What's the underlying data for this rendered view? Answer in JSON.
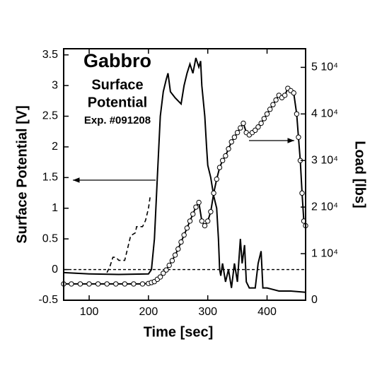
{
  "chart_data": {
    "type": "line",
    "annotations": [
      "Gabbro",
      "Surface",
      "Potential",
      "Exp. #091208"
    ],
    "xlabel": "Time [sec]",
    "ylabel": "Surface Potential [V]",
    "y2label": "Load [lbs]",
    "xlim": [
      57,
      465
    ],
    "xticks": [
      100,
      200,
      300,
      400
    ],
    "ylim": [
      -0.5,
      3.6
    ],
    "yticks": [
      -0.5,
      0,
      0.5,
      1,
      1.5,
      2,
      2.5,
      3,
      3.5
    ],
    "y2lim": [
      0,
      54000
    ],
    "y2ticks": [
      0,
      {
        "value": 10000,
        "label": "1 10⁴"
      },
      {
        "value": 20000,
        "label": "2 10⁴"
      },
      {
        "value": 30000,
        "label": "3 10⁴"
      },
      {
        "value": 40000,
        "label": "4 10⁴"
      },
      {
        "value": 50000,
        "label": "5 10⁴"
      }
    ],
    "reference_line": 0,
    "series": [
      {
        "color": "#000000",
        "dash": false,
        "x": [
          57,
          100,
          150,
          200,
          205,
          210,
          215,
          220,
          225,
          230,
          233,
          237,
          245,
          255,
          260,
          265,
          270,
          275,
          280,
          285,
          288,
          290,
          295,
          298,
          300,
          305,
          310,
          315,
          318,
          320,
          322,
          325,
          330,
          335,
          340,
          345,
          350,
          355,
          358,
          362,
          365,
          370,
          380,
          385,
          390,
          393,
          400,
          420,
          440,
          465
        ],
        "values": [
          -0.05,
          -0.07,
          -0.08,
          -0.07,
          0,
          0.5,
          1.5,
          2.5,
          2.9,
          3.1,
          3.2,
          2.9,
          2.8,
          2.7,
          3.0,
          3.2,
          3.35,
          3.2,
          3.45,
          3.3,
          3.4,
          3.0,
          2.5,
          2.0,
          1.7,
          1.5,
          1.2,
          1.0,
          0.5,
          0.0,
          -0.1,
          0.1,
          -0.2,
          0.0,
          -0.3,
          0.1,
          -0.2,
          0.5,
          0.1,
          0.4,
          -0.2,
          -0.3,
          -0.3,
          0.1,
          0.3,
          -0.3,
          -0.3,
          -0.35,
          -0.35,
          -0.37
        ]
      },
      {
        "color": "#000000",
        "dash": true,
        "x": [
          130,
          135,
          140,
          145,
          150,
          160,
          165,
          170,
          178,
          180,
          190,
          195,
          200,
          203
        ],
        "values": [
          -0.05,
          0.05,
          0.2,
          0.2,
          0.15,
          0.15,
          0.35,
          0.55,
          0.6,
          0.7,
          0.7,
          0.8,
          1.0,
          1.2
        ]
      },
      {
        "color": "#000000",
        "axis": "y2",
        "marker": "circle",
        "x": [
          57,
          70,
          85,
          100,
          115,
          130,
          145,
          160,
          175,
          190,
          200,
          205,
          210,
          215,
          220,
          225,
          230,
          235,
          240,
          245,
          250,
          255,
          260,
          265,
          270,
          275,
          280,
          285,
          290,
          295,
          300,
          305,
          310,
          315,
          320,
          325,
          330,
          335,
          340,
          345,
          350,
          355,
          360,
          365,
          370,
          375,
          380,
          385,
          390,
          395,
          400,
          405,
          410,
          415,
          420,
          425,
          430,
          435,
          440,
          445,
          450,
          453,
          456,
          459,
          462,
          465
        ],
        "values": [
          3500,
          3500,
          3500,
          3500,
          3500,
          3500,
          3500,
          3500,
          3500,
          3500,
          3600,
          3800,
          4000,
          4500,
          5000,
          5800,
          6500,
          7500,
          8500,
          9700,
          11000,
          12500,
          14000,
          15500,
          17000,
          18500,
          20000,
          21000,
          17000,
          16000,
          17000,
          19000,
          23000,
          26000,
          28500,
          30000,
          31000,
          32500,
          34000,
          35000,
          36000,
          37000,
          38000,
          36000,
          35500,
          36000,
          36500,
          37200,
          38000,
          39000,
          40000,
          41000,
          42000,
          43000,
          44000,
          43500,
          44000,
          45500,
          45000,
          44500,
          40000,
          35000,
          30000,
          23000,
          17000,
          16000
        ]
      }
    ]
  }
}
